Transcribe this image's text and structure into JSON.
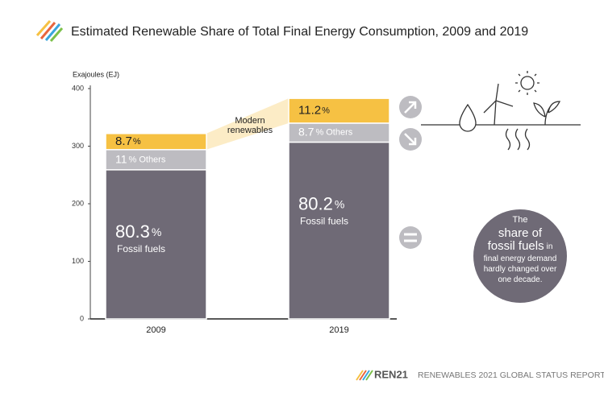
{
  "chart_data": {
    "type": "stacked_bar",
    "title": "Estimated Renewable Share of Total Final Energy Consumption, 2009 and 2019",
    "y_label": "Exajoules (EJ)",
    "categories": [
      "2009",
      "2019"
    ],
    "series": [
      {
        "name": "Fossil fuels",
        "color": "#6f6a76",
        "values": [
          259,
          307
        ],
        "shares": [
          80.3,
          80.2
        ]
      },
      {
        "name": "Others",
        "color": "#bdbcc1",
        "values": [
          35,
          33
        ],
        "shares": [
          11,
          8.7
        ]
      },
      {
        "name": "Modern renewables",
        "color": "#f6c143",
        "values": [
          28,
          43
        ],
        "shares": [
          8.7,
          11.2
        ]
      }
    ],
    "share_unit": "%",
    "annotation": [
      "Modern",
      "renewables"
    ],
    "ylim": [
      0,
      400
    ],
    "yticks": [
      0,
      100,
      200,
      300,
      400
    ],
    "grid": false,
    "note": {
      "lines": [
        "The",
        "share of",
        "fossil fuels",
        "final energy demand",
        "hardly changed over",
        "one decade."
      ],
      "inline": "in"
    },
    "footer": {
      "brand": "REN21",
      "report": "RENEWABLES 2021 GLOBAL STATUS REPORT"
    }
  }
}
